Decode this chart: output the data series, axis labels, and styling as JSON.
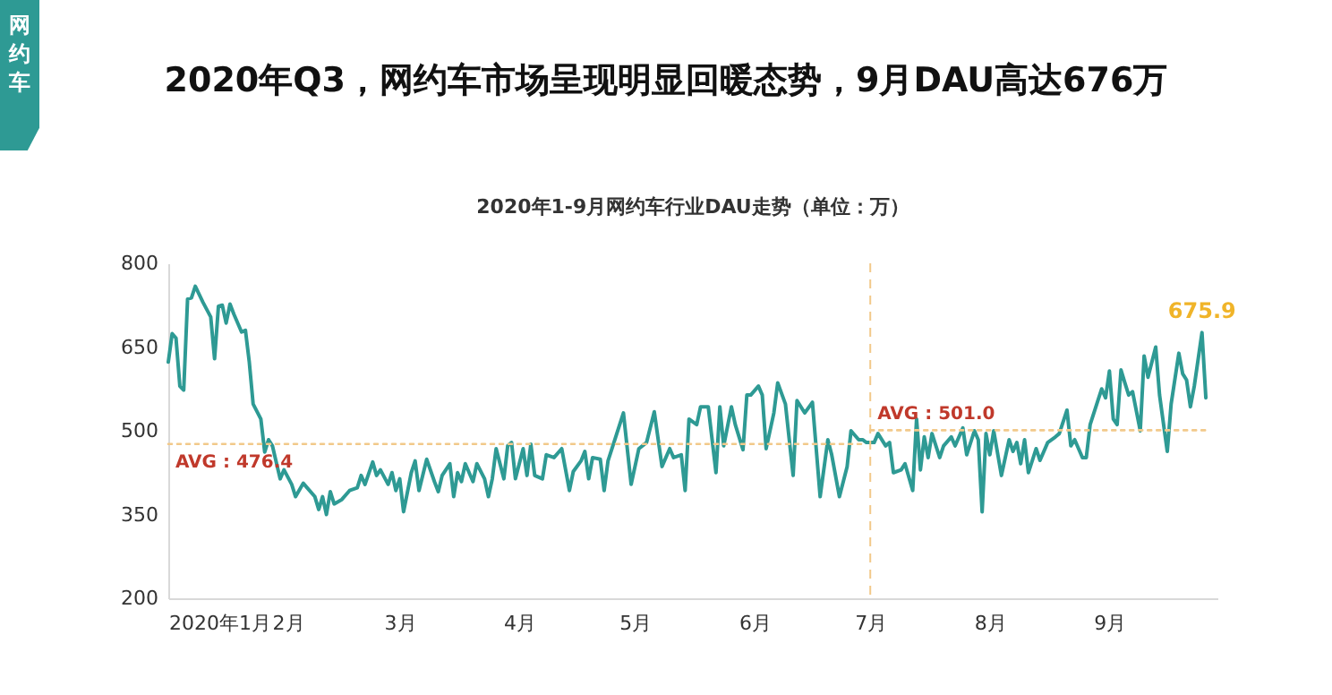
{
  "chart_data": {
    "type": "line",
    "title": "2020年Q3，网约车市场呈现明显回暖态势，9月DAU高达676万",
    "subtitle": "2020年1-9月网约车行业DAU走势（单位：万）",
    "annotations": [
      "网约车",
      {
        "text": "AVG : 476.4",
        "x": "2020-01-01",
        "y": 476.4
      },
      {
        "text": "AVG : 501.0",
        "x": "2020-07-01",
        "y": 501.0
      },
      {
        "text": "675.9",
        "x": "2020-09-25",
        "y": 675.9
      }
    ],
    "xlim": [
      "2020-01-01",
      "2020-09-29"
    ],
    "xticks": [
      {
        "value": "2020-01-01",
        "label": "2020年1月"
      },
      {
        "value": "2020-02-01",
        "label": "2月"
      },
      {
        "value": "2020-03-01",
        "label": "3月"
      },
      {
        "value": "2020-04-01",
        "label": "4月"
      },
      {
        "value": "2020-05-01",
        "label": "5月"
      },
      {
        "value": "2020-06-01",
        "label": "6月"
      },
      {
        "value": "2020-07-01",
        "label": "7月"
      },
      {
        "value": "2020-08-01",
        "label": "8月"
      },
      {
        "value": "2020-09-01",
        "label": "9月"
      }
    ],
    "ylim": [
      200,
      800
    ],
    "yticks": [
      200,
      350,
      500,
      650,
      800
    ],
    "ref_lines": [
      {
        "axis": "x",
        "value": "2020-07-01",
        "color": "#f2c98a",
        "line_style": "dashed"
      }
    ],
    "series": [
      {
        "color": "#2e9a94",
        "x": [
          "2020-01-01",
          "2020-01-02",
          "2020-01-03",
          "2020-01-04",
          "2020-01-05",
          "2020-01-06",
          "2020-01-07",
          "2020-01-08",
          "2020-01-10",
          "2020-01-12",
          "2020-01-13",
          "2020-01-14",
          "2020-01-15",
          "2020-01-16",
          "2020-01-17",
          "2020-01-18",
          "2020-01-20",
          "2020-01-21",
          "2020-01-22",
          "2020-01-23",
          "2020-01-25",
          "2020-01-26",
          "2020-01-27",
          "2020-01-28",
          "2020-01-30",
          "2020-01-31",
          "2020-02-02",
          "2020-02-03",
          "2020-02-05",
          "2020-02-06",
          "2020-02-08",
          "2020-02-09",
          "2020-02-10",
          "2020-02-11",
          "2020-02-12",
          "2020-02-13",
          "2020-02-15",
          "2020-02-17",
          "2020-02-19",
          "2020-02-20",
          "2020-02-21",
          "2020-02-23",
          "2020-02-24",
          "2020-02-25",
          "2020-02-27",
          "2020-02-28",
          "2020-02-29",
          "2020-03-01",
          "2020-03-02",
          "2020-03-04",
          "2020-03-05",
          "2020-03-06",
          "2020-03-08",
          "2020-03-10",
          "2020-03-11",
          "2020-03-12",
          "2020-03-14",
          "2020-03-15",
          "2020-03-16",
          "2020-03-17",
          "2020-03-18",
          "2020-03-20",
          "2020-03-21",
          "2020-03-23",
          "2020-03-24",
          "2020-03-25",
          "2020-03-26",
          "2020-03-28",
          "2020-03-29",
          "2020-03-30",
          "2020-03-31",
          "2020-04-02",
          "2020-04-03",
          "2020-04-04",
          "2020-04-05",
          "2020-04-07",
          "2020-04-08",
          "2020-04-10",
          "2020-04-12",
          "2020-04-14",
          "2020-04-15",
          "2020-04-17",
          "2020-04-18",
          "2020-04-19",
          "2020-04-20",
          "2020-04-22",
          "2020-04-23",
          "2020-04-24",
          "2020-04-26",
          "2020-04-28",
          "2020-04-30",
          "2020-05-02",
          "2020-05-04",
          "2020-05-06",
          "2020-05-08",
          "2020-05-10",
          "2020-05-11",
          "2020-05-13",
          "2020-05-14",
          "2020-05-15",
          "2020-05-17",
          "2020-05-18",
          "2020-05-19",
          "2020-05-20",
          "2020-05-22",
          "2020-05-23",
          "2020-05-24",
          "2020-05-26",
          "2020-05-27",
          "2020-05-29",
          "2020-05-30",
          "2020-05-31",
          "2020-06-02",
          "2020-06-03",
          "2020-06-04",
          "2020-06-06",
          "2020-06-07",
          "2020-06-09",
          "2020-06-11",
          "2020-06-12",
          "2020-06-14",
          "2020-06-16",
          "2020-06-18",
          "2020-06-20",
          "2020-06-21",
          "2020-06-23",
          "2020-06-25",
          "2020-06-26",
          "2020-06-28",
          "2020-06-29",
          "2020-06-30",
          "2020-07-02",
          "2020-07-03",
          "2020-07-05",
          "2020-07-06",
          "2020-07-07",
          "2020-07-09",
          "2020-07-10",
          "2020-07-12",
          "2020-07-13",
          "2020-07-14",
          "2020-07-15",
          "2020-07-16",
          "2020-07-17",
          "2020-07-19",
          "2020-07-20",
          "2020-07-22",
          "2020-07-23",
          "2020-07-25",
          "2020-07-26",
          "2020-07-28",
          "2020-07-29",
          "2020-07-30",
          "2020-07-31",
          "2020-08-01",
          "2020-08-02",
          "2020-08-04",
          "2020-08-06",
          "2020-08-07",
          "2020-08-08",
          "2020-08-09",
          "2020-08-10",
          "2020-08-11",
          "2020-08-13",
          "2020-08-14",
          "2020-08-16",
          "2020-08-18",
          "2020-08-19",
          "2020-08-21",
          "2020-08-22",
          "2020-08-23",
          "2020-08-25",
          "2020-08-26",
          "2020-08-27",
          "2020-08-29",
          "2020-08-30",
          "2020-08-31",
          "2020-09-01",
          "2020-09-02",
          "2020-09-03",
          "2020-09-04",
          "2020-09-05",
          "2020-09-06",
          "2020-09-07",
          "2020-09-09",
          "2020-09-10",
          "2020-09-11",
          "2020-09-13",
          "2020-09-14",
          "2020-09-16",
          "2020-09-17",
          "2020-09-19",
          "2020-09-20",
          "2020-09-21",
          "2020-09-22",
          "2020-09-23",
          "2020-09-25",
          "2020-09-26"
        ],
        "values": [
          623,
          674,
          666,
          580,
          573,
          736,
          738,
          759,
          730,
          704,
          629,
          723,
          725,
          693,
          727,
          709,
          677,
          680,
          623,
          548,
          521,
          462,
          484,
          473,
          414,
          430,
          404,
          382,
          406,
          398,
          382,
          359,
          382,
          350,
          391,
          369,
          377,
          393,
          398,
          420,
          404,
          444,
          420,
          430,
          404,
          425,
          393,
          414,
          355,
          425,
          446,
          393,
          449,
          409,
          391,
          420,
          441,
          382,
          425,
          409,
          441,
          409,
          441,
          414,
          382,
          414,
          468,
          414,
          473,
          479,
          414,
          468,
          420,
          476,
          420,
          414,
          457,
          452,
          468,
          393,
          427,
          446,
          463,
          414,
          452,
          449,
          393,
          446,
          489,
          532,
          404,
          468,
          479,
          534,
          436,
          468,
          452,
          457,
          393,
          521,
          511,
          543,
          543,
          543,
          425,
          543,
          473,
          543,
          511,
          466,
          564,
          564,
          580,
          564,
          468,
          532,
          586,
          548,
          420,
          554,
          532,
          551,
          382,
          484,
          457,
          382,
          436,
          500,
          484,
          484,
          479,
          479,
          495,
          473,
          479,
          425,
          430,
          441,
          393,
          521,
          430,
          489,
          452,
          495,
          452,
          473,
          489,
          473,
          505,
          457,
          500,
          484,
          355,
          495,
          457,
          500,
          420,
          484,
          463,
          479,
          441,
          484,
          425,
          468,
          447,
          479,
          489,
          495,
          537,
          473,
          484,
          452,
          452,
          511,
          554,
          575,
          559,
          607,
          521,
          511,
          609,
          586,
          564,
          570,
          500,
          634,
          596,
          650,
          564,
          463,
          548,
          639,
          602,
          591,
          543,
          580,
          675.9,
          559
        ]
      },
      {
        "type": "line",
        "color": "#f2c98a",
        "line_style": "dotted",
        "x": [
          "2020-01-01",
          "2020-06-30"
        ],
        "values": [
          476.4,
          476.4
        ]
      },
      {
        "type": "line",
        "color": "#f2c98a",
        "line_style": "dotted",
        "x": [
          "2020-07-01",
          "2020-09-26"
        ],
        "values": [
          501.0,
          501.0
        ]
      }
    ]
  }
}
